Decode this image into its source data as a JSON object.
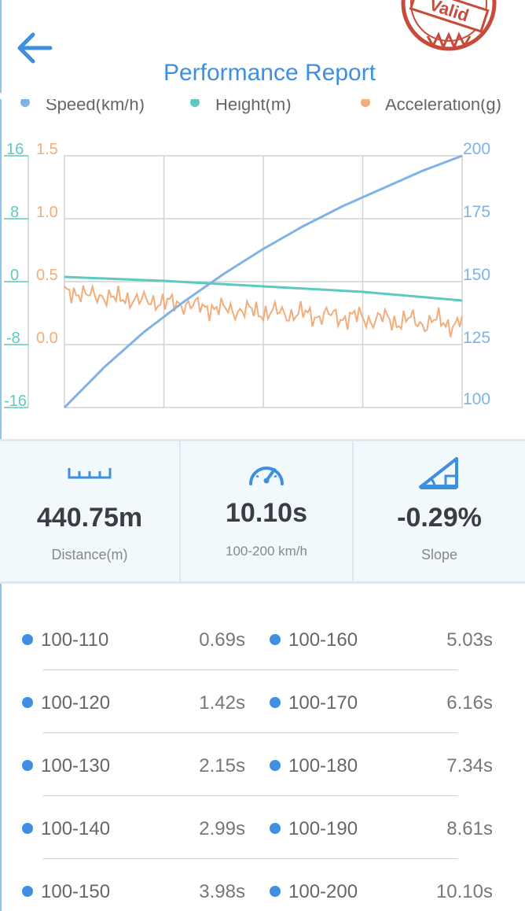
{
  "header": {
    "title": "Performance Report",
    "stamp_text": "Valid"
  },
  "colors": {
    "speed": "#7fb3e6",
    "height": "#5ec9c0",
    "acceleration": "#f2ad7a",
    "accent": "#3d8fe0",
    "stamp": "#c84a3a"
  },
  "chart_data": {
    "type": "line",
    "legend": [
      "Speed(km/h)",
      "Height(m)",
      "Acceleration(g)"
    ],
    "axes": {
      "height_ticks": [
        "16",
        "8",
        "0",
        "-8",
        "-16"
      ],
      "acceleration_ticks": [
        "1.5",
        "1.0",
        "0.5",
        "0.0"
      ],
      "speed_ticks": [
        "200",
        "175",
        "150",
        "125",
        "100"
      ],
      "speed_range": [
        100,
        200
      ],
      "height_range": [
        -16,
        16
      ],
      "acceleration_range": [
        -0.5,
        1.5
      ]
    },
    "grid": true,
    "series": [
      {
        "name": "Speed(km/h)",
        "x": [
          0,
          0.05,
          0.1,
          0.15,
          0.2,
          0.25,
          0.3,
          0.35,
          0.4,
          0.45,
          0.5,
          0.55,
          0.6,
          0.65,
          0.7,
          0.75,
          0.8,
          0.85,
          0.9,
          0.95,
          1.0
        ],
        "values": [
          100,
          108,
          116,
          123,
          130,
          136,
          142,
          147.5,
          153,
          158,
          163,
          167.5,
          172,
          176,
          180,
          183.5,
          187,
          190.5,
          194,
          197,
          200
        ]
      },
      {
        "name": "Height(m)",
        "x": [
          0,
          0.25,
          0.5,
          0.75,
          1.0
        ],
        "values": [
          0.6,
          0.1,
          -0.6,
          -1.3,
          -2.4
        ]
      },
      {
        "name": "Acceleration(g)",
        "x": [
          0,
          0.1,
          0.2,
          0.3,
          0.4,
          0.5,
          0.6,
          0.7,
          0.8,
          0.9,
          1.0
        ],
        "values": [
          0.42,
          0.38,
          0.35,
          0.32,
          0.28,
          0.26,
          0.24,
          0.22,
          0.2,
          0.18,
          0.17
        ]
      }
    ]
  },
  "stats": [
    {
      "icon": "ruler-icon",
      "value": "440.75m",
      "label": "Distance(m)"
    },
    {
      "icon": "speedometer-icon",
      "value": "10.10s",
      "label": "100-200 km/h"
    },
    {
      "icon": "slope-icon",
      "value": "-0.29%",
      "label": "Slope"
    }
  ],
  "splits": [
    {
      "left": {
        "range": "100-110",
        "time": "0.69s"
      },
      "right": {
        "range": "100-160",
        "time": "5.03s"
      }
    },
    {
      "left": {
        "range": "100-120",
        "time": "1.42s"
      },
      "right": {
        "range": "100-170",
        "time": "6.16s"
      }
    },
    {
      "left": {
        "range": "100-130",
        "time": "2.15s"
      },
      "right": {
        "range": "100-180",
        "time": "7.34s"
      }
    },
    {
      "left": {
        "range": "100-140",
        "time": "2.99s"
      },
      "right": {
        "range": "100-190",
        "time": "8.61s"
      }
    },
    {
      "left": {
        "range": "100-150",
        "time": "3.98s"
      },
      "right": {
        "range": "100-200",
        "time": "10.10s"
      }
    }
  ]
}
